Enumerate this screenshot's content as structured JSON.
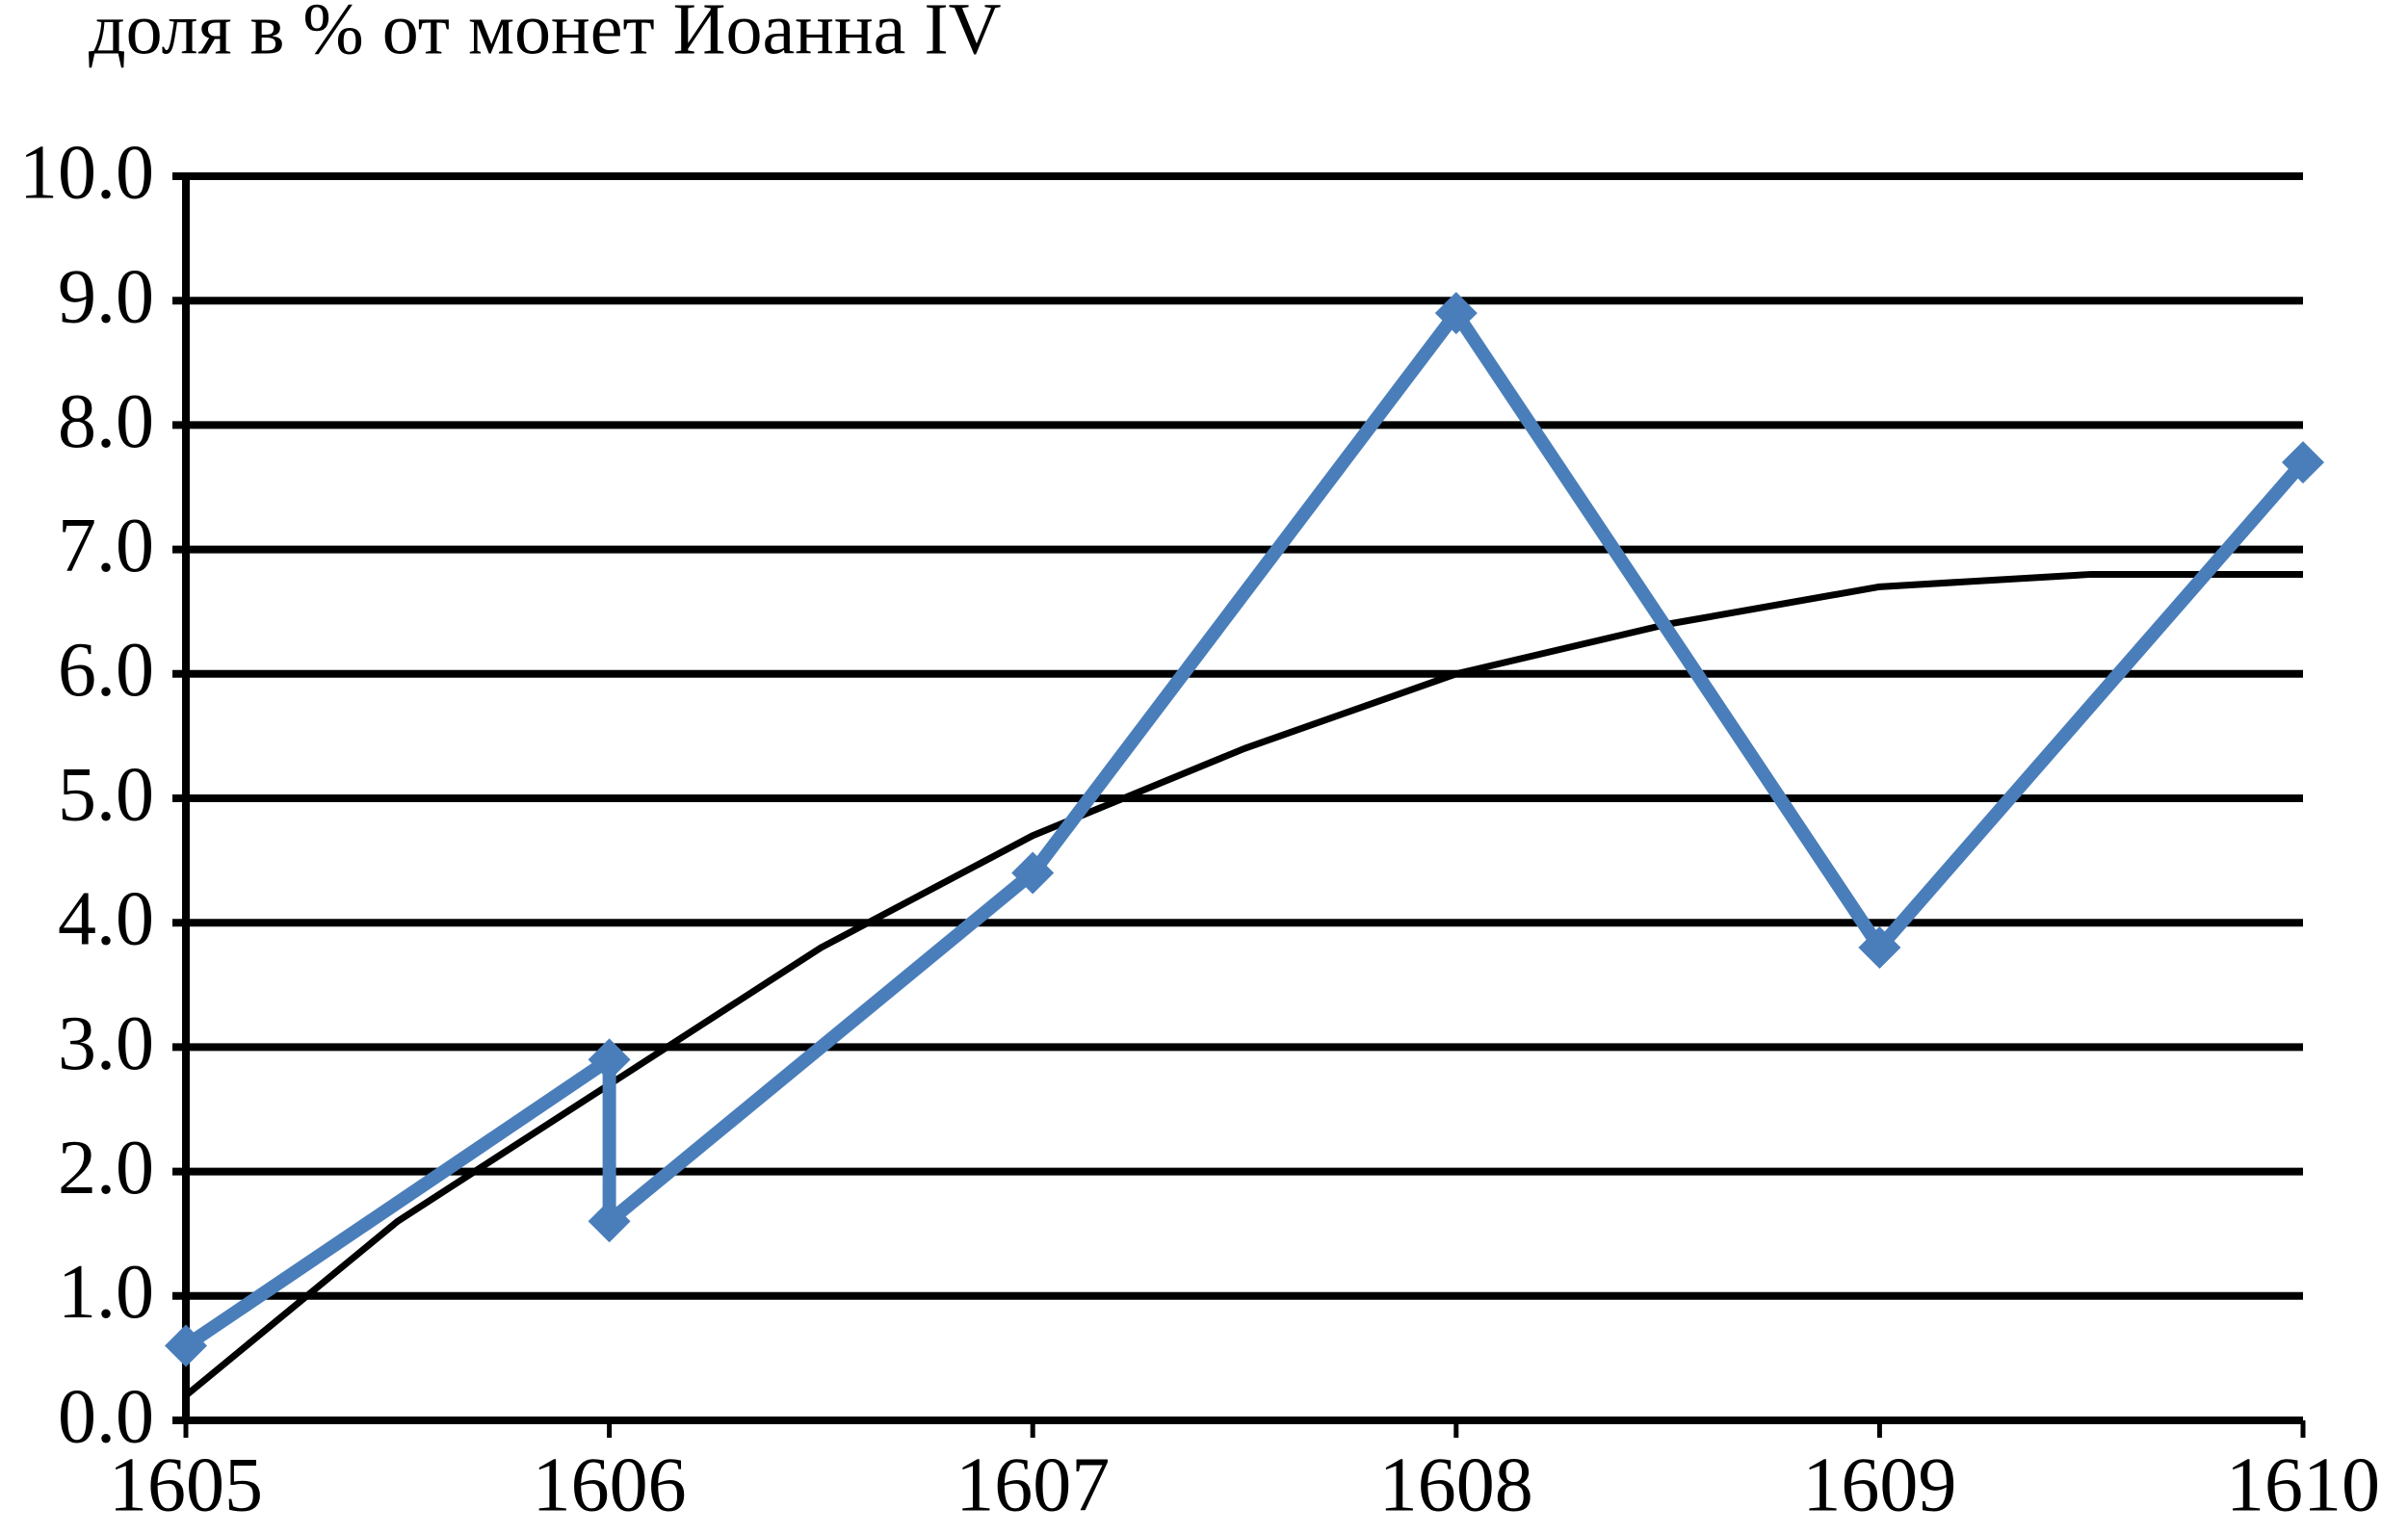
{
  "chart_data": {
    "type": "line",
    "title": "доля в % от монет Иоанна IV",
    "xlim": [
      1605,
      1610
    ],
    "xticks": [
      1605,
      1606,
      1607,
      1608,
      1609,
      1610
    ],
    "ylim": [
      0,
      10
    ],
    "yticks": [
      {
        "value": 0,
        "label": "0.0"
      },
      {
        "value": 1,
        "label": "1.0"
      },
      {
        "value": 2,
        "label": "2.0"
      },
      {
        "value": 3,
        "label": "3.0"
      },
      {
        "value": 4,
        "label": "4.0"
      },
      {
        "value": 5,
        "label": "5.0"
      },
      {
        "value": 6,
        "label": "6.0"
      },
      {
        "value": 7,
        "label": "7.0"
      },
      {
        "value": 8,
        "label": "8.0"
      },
      {
        "value": 9,
        "label": "9.0"
      },
      {
        "value": 10,
        "label": "10.0"
      }
    ],
    "grid": true,
    "series": [
      {
        "color": "#4a7ebb",
        "marker": "diamond",
        "x": [
          1605,
          1606,
          1606,
          1607,
          1608,
          1609,
          1610
        ],
        "values": [
          0.6,
          2.9,
          1.6,
          4.4,
          8.9,
          3.8,
          7.7
        ]
      },
      {
        "color": "#000000",
        "marker": "none",
        "x": [
          1605,
          1605.5,
          1606,
          1606.5,
          1607,
          1607.5,
          1608,
          1608.5,
          1609,
          1609.5,
          1610
        ],
        "values": [
          0.2,
          1.6,
          2.7,
          3.8,
          4.7,
          5.4,
          6.0,
          6.4,
          6.7,
          6.8,
          6.8
        ]
      }
    ]
  }
}
